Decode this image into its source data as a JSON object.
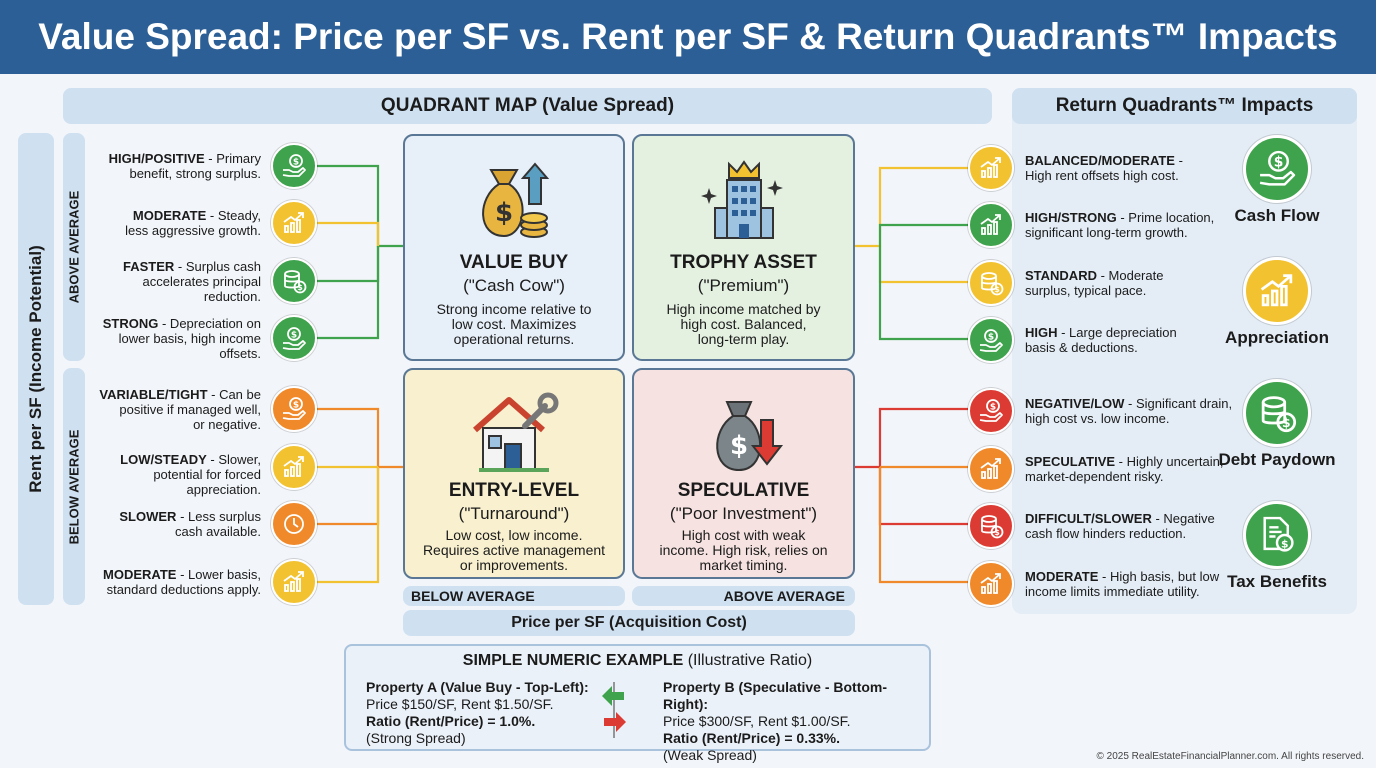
{
  "title": "Value Spread: Price per SF vs. Rent per SF & Return Quadrants™ Impacts",
  "quadrant_map_header": "QUADRANT MAP (Value Spread)",
  "impacts_header": "Return Quadrants™ Impacts",
  "y_axis_label": "Rent per SF (Income Potential)",
  "y_above": "ABOVE AVERAGE",
  "y_below": "BELOW AVERAGE",
  "x_below": "BELOW AVERAGE",
  "x_above": "ABOVE AVERAGE",
  "x_axis_label": "Price per SF (Acquisition Cost)",
  "quadrants": [
    {
      "title": "VALUE BUY",
      "subtitle": "(\"Cash Cow\")",
      "desc": [
        "Strong income relative to",
        "low cost. Maximizes",
        "operational returns."
      ],
      "icon": "money-bag-icon"
    },
    {
      "title": "TROPHY ASSET",
      "subtitle": "(\"Premium\")",
      "desc": [
        "High income matched by",
        "high cost. Balanced,",
        "long-term play."
      ],
      "icon": "crown-building-icon"
    },
    {
      "title": "ENTRY-LEVEL",
      "subtitle": "(\"Turnaround\")",
      "desc": [
        "Low cost, low income.",
        "Requires active management",
        "or improvements."
      ],
      "icon": "house-wrench-icon"
    },
    {
      "title": "SPECULATIVE",
      "subtitle": "(\"Poor Investment\")",
      "desc": [
        "High cost with weak",
        "income. High risk, relies on",
        "market timing."
      ],
      "icon": "money-bag-down-icon"
    }
  ],
  "left_items": [
    {
      "bold": "HIGH/POSITIVE",
      "rest": " - Primary",
      "lines": [
        "benefit, strong surplus."
      ],
      "color": "#3fa34d",
      "icon": "cash-flow-icon"
    },
    {
      "bold": "MODERATE",
      "rest": " - Steady,",
      "lines": [
        "less aggressive growth."
      ],
      "color": "#f2c230",
      "icon": "appreciation-icon"
    },
    {
      "bold": "FASTER",
      "rest": " - Surplus cash",
      "lines": [
        "accelerates principal",
        "reduction."
      ],
      "color": "#3fa34d",
      "icon": "debt-paydown-icon"
    },
    {
      "bold": "STRONG",
      "rest": " - Depreciation on",
      "lines": [
        "lower basis, high income",
        "offsets."
      ],
      "color": "#3fa34d",
      "icon": "tax-benefits-icon"
    },
    {
      "bold": "VARIABLE/TIGHT",
      "rest": " - Can be",
      "lines": [
        "positive if managed well,",
        "or negative."
      ],
      "color": "#f0892a",
      "icon": "cash-flow-icon"
    },
    {
      "bold": "LOW/STEADY",
      "rest": " - Slower,",
      "lines": [
        "potential for forced appreciation."
      ],
      "color": "#f2c230",
      "icon": "appreciation-icon"
    },
    {
      "bold": "SLOWER",
      "rest": " - Less surplus",
      "lines": [
        "cash available."
      ],
      "color": "#f0892a",
      "icon": "clock-icon"
    },
    {
      "bold": "MODERATE",
      "rest": " - Lower basis,",
      "lines": [
        "standard deductions apply."
      ],
      "color": "#f2c230",
      "icon": "appreciation-icon"
    }
  ],
  "right_items": [
    {
      "bold": "BALANCED/MODERATE",
      "rest": " -",
      "lines": [
        "High rent offsets high cost."
      ],
      "color": "#f2c230",
      "icon": "appreciation-icon"
    },
    {
      "bold": "HIGH/STRONG",
      "rest": " - Prime location,",
      "lines": [
        "significant long-term growth."
      ],
      "color": "#3fa34d",
      "icon": "appreciation-icon"
    },
    {
      "bold": "STANDARD",
      "rest": " - Moderate",
      "lines": [
        "surplus, typical pace."
      ],
      "color": "#f2c230",
      "icon": "debt-paydown-icon"
    },
    {
      "bold": "HIGH",
      "rest": " - Large depreciation",
      "lines": [
        "basis & deductions."
      ],
      "color": "#3fa34d",
      "icon": "tax-benefits-icon"
    },
    {
      "bold": "NEGATIVE/LOW",
      "rest": " - Significant drain,",
      "lines": [
        "high cost vs. low income."
      ],
      "color": "#dc3b33",
      "icon": "cash-flow-icon"
    },
    {
      "bold": "SPECULATIVE",
      "rest": " - Highly uncertain,",
      "lines": [
        "market-dependent risky."
      ],
      "color": "#f0892a",
      "icon": "appreciation-icon"
    },
    {
      "bold": "DIFFICULT/SLOWER",
      "rest": " - Negative",
      "lines": [
        "cash flow hinders reduction."
      ],
      "color": "#dc3b33",
      "icon": "debt-paydown-icon"
    },
    {
      "bold": "MODERATE",
      "rest": " - High basis, but low",
      "lines": [
        "income limits immediate utility."
      ],
      "color": "#f0892a",
      "icon": "appreciation-icon"
    }
  ],
  "impacts": [
    {
      "label": "Cash Flow",
      "color": "#3fa34d",
      "icon": "cash-flow-icon"
    },
    {
      "label": "Appreciation",
      "color": "#f2c230",
      "icon": "appreciation-icon"
    },
    {
      "label": "Debt Paydown",
      "color": "#3fa34d",
      "icon": "debt-paydown-icon"
    },
    {
      "label": "Tax Benefits",
      "color": "#3fa34d",
      "icon": "tax-benefits-icon"
    }
  ],
  "example": {
    "header_bold": "SIMPLE NUMERIC EXAMPLE",
    "header_rest": " (Illustrative Ratio)",
    "a_title": "Property A (Value Buy - Top-Left):",
    "a_price": "Price $150/SF, Rent $1.50/SF.",
    "a_ratio": "Ratio (Rent/Price) = 1.0%.",
    "a_spread": "(Strong Spread)",
    "b_title": "Property B (Speculative - Bottom-Right):",
    "b_price": "Price $300/SF, Rent $1.00/SF.",
    "b_ratio": "Ratio (Rent/Price) = 0.33%.",
    "b_spread": "(Weak Spread)"
  },
  "copyright": "© 2025 RealEstateFinancialPlanner.com. All rights reserved.",
  "colors": {
    "green": "#3fa34d",
    "yellow": "#f2c230",
    "orange": "#f0892a",
    "red": "#dc3b33",
    "header_blue": "#2c5f96"
  }
}
